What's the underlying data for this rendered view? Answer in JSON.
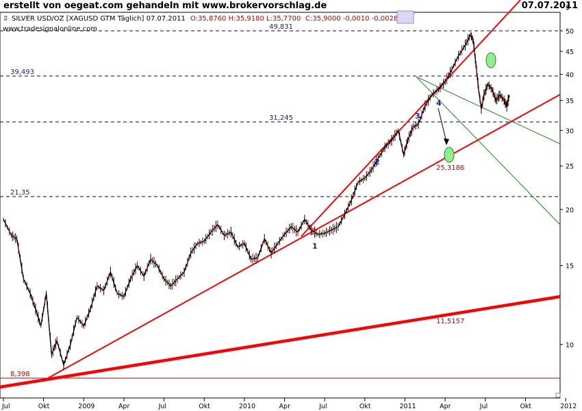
{
  "header": {
    "title": "erstellt von oegeat.com gehandeln mit www.brokervorschlag.de",
    "date": "07.07.2011"
  },
  "symbol_line": {
    "name": "SILVER USD/OZ [XAGUSD GTM  Täglich] 07.07.2011",
    "ohlc": "O:35,8760 H:35,9180 L:35,7700",
    "change": "C:35,9000 -0,0010 -0,0028%",
    "source": "www.tradesignalonline.com"
  },
  "colors": {
    "price_line": "#000000",
    "trend_red": "#ff0000",
    "fan_green": "#1a8a1a",
    "level_dash": "#000060",
    "target_ellipse": "#90ee90"
  },
  "chart_data": {
    "type": "line",
    "title": "SILVER USD/OZ",
    "scale": "log",
    "currency_label": "$",
    "ylim": [
      7.8,
      52
    ],
    "yticks": [
      10,
      15,
      20,
      25,
      30,
      35,
      40,
      45,
      50
    ],
    "xticks": [
      "Jul",
      "Okt",
      "2009",
      "Apr",
      "Jul",
      "Okt",
      "2010",
      "Apr",
      "Jul",
      "Okt",
      "2011",
      "Apr",
      "Jul",
      "Okt",
      "2012"
    ],
    "xticks_t": [
      0,
      3,
      6,
      9,
      12,
      15,
      18,
      21,
      24,
      27,
      30,
      33,
      36,
      39,
      42
    ],
    "x_unit": "months since Jul 2008",
    "series": [
      {
        "name": "SILVER USD/OZ",
        "points": [
          [
            0,
            19
          ],
          [
            0.6,
            17.5
          ],
          [
            1.0,
            17.2
          ],
          [
            1.5,
            14.0
          ],
          [
            2.0,
            13.0
          ],
          [
            2.4,
            12.0
          ],
          [
            2.8,
            11.0
          ],
          [
            3.2,
            13.0
          ],
          [
            3.6,
            9.5
          ],
          [
            4.0,
            10.2
          ],
          [
            4.5,
            9.0
          ],
          [
            5.0,
            10.0
          ],
          [
            5.5,
            11.5
          ],
          [
            6.0,
            11.0
          ],
          [
            6.5,
            12.0
          ],
          [
            7.0,
            13.5
          ],
          [
            7.5,
            13.2
          ],
          [
            8.0,
            14.5
          ],
          [
            8.5,
            13.0
          ],
          [
            9.0,
            12.8
          ],
          [
            9.5,
            14.0
          ],
          [
            10.0,
            15.0
          ],
          [
            10.5,
            14.2
          ],
          [
            11.0,
            15.5
          ],
          [
            11.5,
            15.0
          ],
          [
            12.0,
            14.0
          ],
          [
            12.5,
            13.5
          ],
          [
            13.0,
            14.0
          ],
          [
            13.5,
            14.5
          ],
          [
            14.0,
            16.0
          ],
          [
            14.5,
            16.8
          ],
          [
            15.0,
            17.0
          ],
          [
            15.5,
            17.8
          ],
          [
            16.0,
            18.5
          ],
          [
            16.5,
            17.5
          ],
          [
            17.0,
            17.8
          ],
          [
            17.5,
            16.5
          ],
          [
            18.0,
            16.8
          ],
          [
            18.5,
            15.5
          ],
          [
            19.0,
            15.6
          ],
          [
            19.5,
            17.2
          ],
          [
            20.0,
            16.0
          ],
          [
            20.5,
            16.8
          ],
          [
            21.0,
            17.6
          ],
          [
            21.5,
            18.3
          ],
          [
            22.0,
            17.8
          ],
          [
            22.5,
            19.0
          ],
          [
            23.0,
            18.0
          ],
          [
            23.5,
            17.6
          ],
          [
            24.0,
            17.7
          ],
          [
            24.5,
            18.0
          ],
          [
            25.0,
            18.3
          ],
          [
            25.5,
            19.5
          ],
          [
            26.0,
            21.0
          ],
          [
            26.5,
            23.0
          ],
          [
            27.0,
            23.5
          ],
          [
            27.5,
            24.5
          ],
          [
            28.0,
            26.0
          ],
          [
            28.5,
            27.5
          ],
          [
            29.0,
            28.5
          ],
          [
            29.5,
            30.0
          ],
          [
            29.9,
            26.5
          ],
          [
            30.2,
            28.5
          ],
          [
            30.6,
            30.5
          ],
          [
            31.0,
            31.0
          ],
          [
            31.5,
            34.0
          ],
          [
            32.0,
            36.0
          ],
          [
            32.5,
            37.0
          ],
          [
            33.0,
            38.5
          ],
          [
            33.5,
            41.0
          ],
          [
            34.0,
            44.0
          ],
          [
            34.5,
            46.5
          ],
          [
            34.9,
            49.0
          ],
          [
            35.1,
            47.5
          ],
          [
            35.3,
            42.0
          ],
          [
            35.5,
            37.0
          ],
          [
            35.7,
            33.5
          ],
          [
            35.9,
            36.0
          ],
          [
            36.2,
            38.0
          ],
          [
            36.5,
            37.0
          ],
          [
            36.8,
            35.0
          ],
          [
            37.1,
            36.0
          ],
          [
            37.4,
            35.0
          ],
          [
            37.6,
            34.0
          ],
          [
            37.8,
            35.9
          ]
        ]
      }
    ],
    "annotations": {
      "levels": [
        "49,831",
        "39,493",
        "31,245",
        "21,35",
        "8,398"
      ],
      "trend_labels": [
        "25,3186",
        "11,5157"
      ],
      "waves": [
        "1",
        "2",
        "3",
        "4"
      ]
    }
  }
}
